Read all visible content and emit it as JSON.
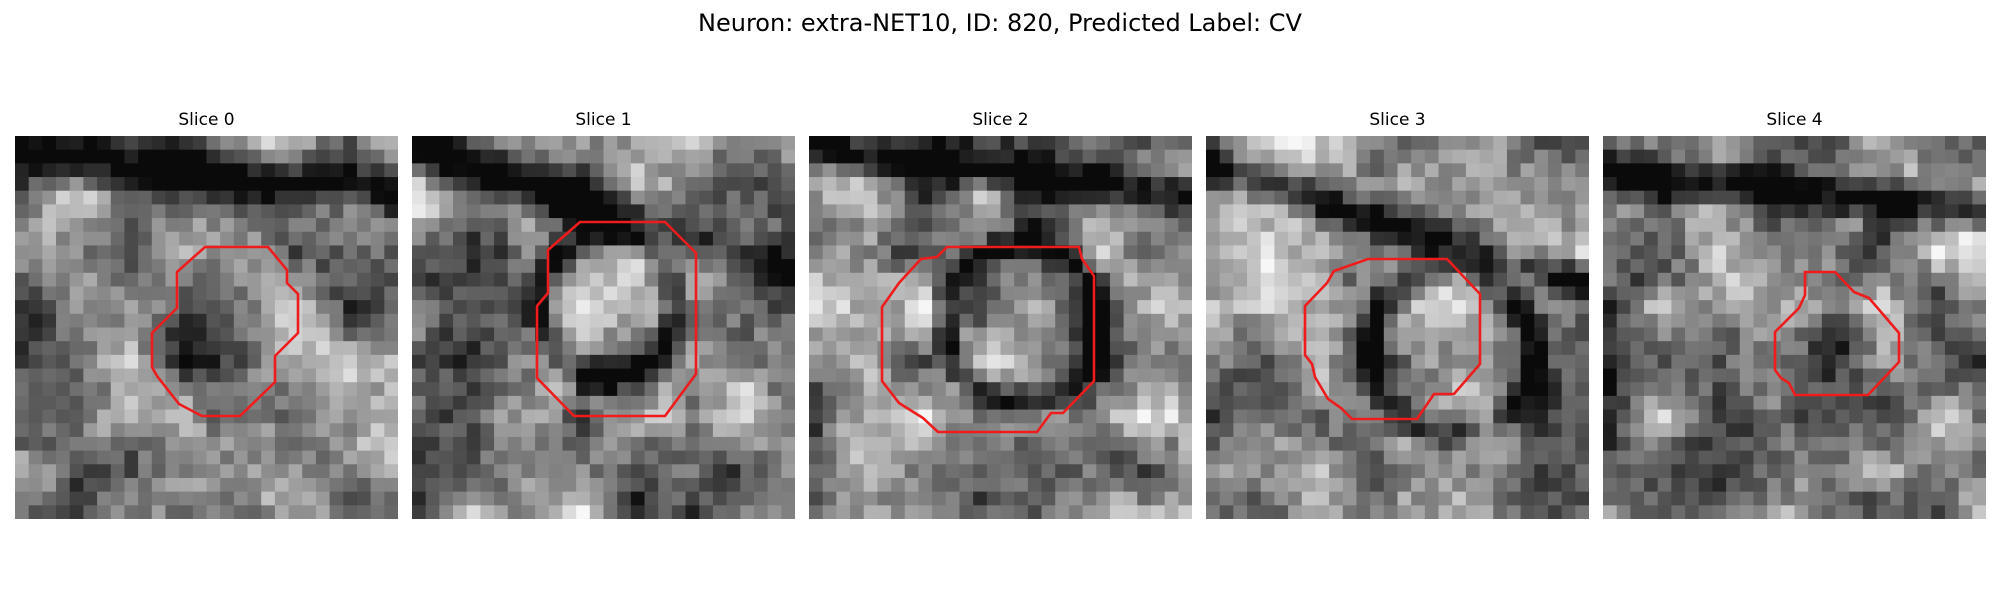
{
  "figure": {
    "title": "Neuron: extra-NET10, ID: 820, Predicted Label: CV"
  },
  "colors": {
    "contour": "#ee1c1c",
    "background": "#ffffff"
  },
  "panels": [
    {
      "title": "Slice 0"
    },
    {
      "title": "Slice 1"
    },
    {
      "title": "Slice 2"
    },
    {
      "title": "Slice 3"
    },
    {
      "title": "Slice 4"
    }
  ]
}
